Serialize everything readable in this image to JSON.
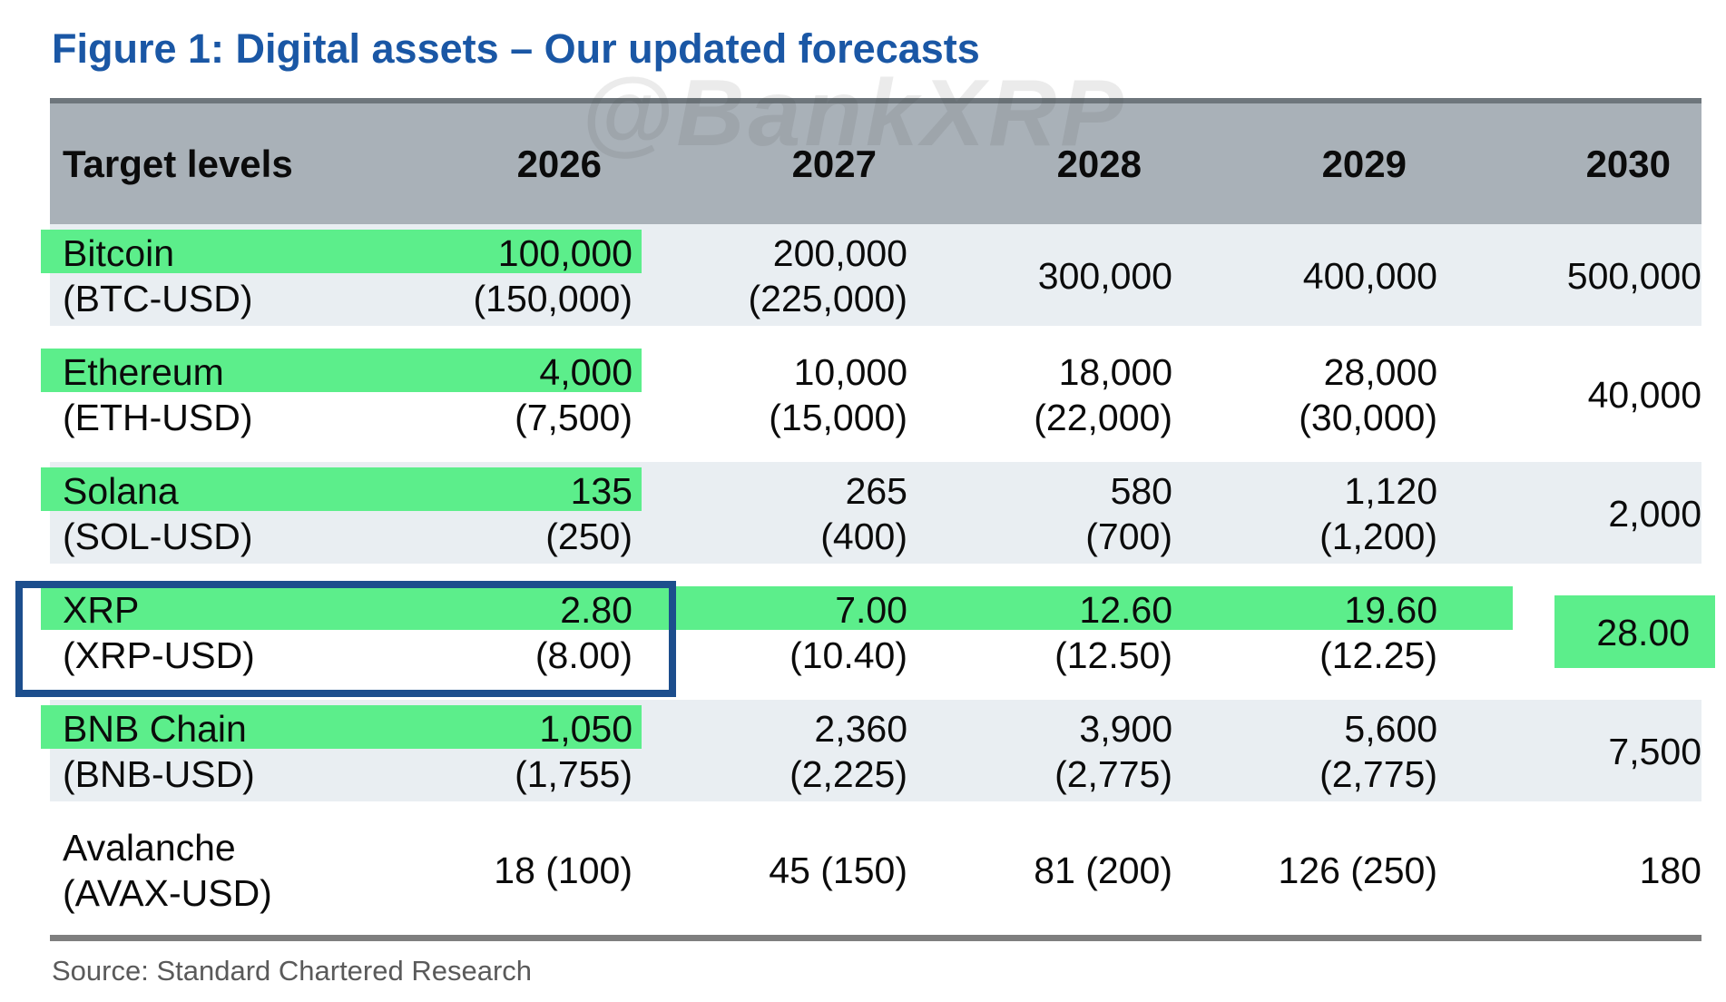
{
  "title": "Figure 1: Digital assets – Our updated forecasts",
  "watermark": "@BankXRP",
  "source": "Source: Standard Chartered Research",
  "colors": {
    "title_blue": "#1a57a5",
    "header_gray": "#a9b1b8",
    "row_band_blue": "#e9eef2",
    "highlight_green": "#5cee8b",
    "outline_blue": "#1c4e8d",
    "source_gray": "#5a5a5a"
  },
  "table": {
    "header": {
      "col0": "Target levels",
      "years": [
        "2026",
        "2027",
        "2028",
        "2029",
        "2030"
      ]
    },
    "rows": [
      {
        "name": "Bitcoin",
        "ticker": "(BTC-USD)",
        "cells": [
          {
            "line1": "100,000",
            "line2": "(150,000)"
          },
          {
            "line1": "200,000",
            "line2": "(225,000)"
          },
          {
            "single": "300,000"
          },
          {
            "single": "400,000"
          },
          {
            "single": "500,000"
          }
        ]
      },
      {
        "name": "Ethereum",
        "ticker": "(ETH-USD)",
        "cells": [
          {
            "line1": "4,000",
            "line2": "(7,500)"
          },
          {
            "line1": "10,000",
            "line2": "(15,000)"
          },
          {
            "line1": "18,000",
            "line2": "(22,000)"
          },
          {
            "line1": "28,000",
            "line2": "(30,000)"
          },
          {
            "single": "40,000"
          }
        ]
      },
      {
        "name": "Solana",
        "ticker": "(SOL-USD)",
        "cells": [
          {
            "line1": "135",
            "line2": "(250)"
          },
          {
            "line1": "265",
            "line2": "(400)"
          },
          {
            "line1": "580",
            "line2": "(700)"
          },
          {
            "line1": "1,120",
            "line2": "(1,200)"
          },
          {
            "single": "2,000"
          }
        ]
      },
      {
        "name": "XRP",
        "ticker": "(XRP-USD)",
        "cells": [
          {
            "line1": "2.80",
            "line2": "(8.00)"
          },
          {
            "line1": "7.00",
            "line2": "(10.40)"
          },
          {
            "line1": "12.60",
            "line2": "(12.50)"
          },
          {
            "line1": "19.60",
            "line2": "(12.25)"
          },
          {
            "single": "28.00"
          }
        ]
      },
      {
        "name": "BNB Chain",
        "ticker": "(BNB-USD)",
        "cells": [
          {
            "line1": "1,050",
            "line2": "(1,755)"
          },
          {
            "line1": "2,360",
            "line2": "(2,225)"
          },
          {
            "line1": "3,900",
            "line2": "(2,775)"
          },
          {
            "line1": "5,600",
            "line2": "(2,775)"
          },
          {
            "single": "7,500"
          }
        ]
      },
      {
        "name": "Avalanche",
        "ticker": "(AVAX-USD)",
        "cells": [
          {
            "single": "18 (100)"
          },
          {
            "single": "45 (150)"
          },
          {
            "single": "81 (200)"
          },
          {
            "single": "126 (250)"
          },
          {
            "single": "180"
          }
        ]
      }
    ]
  },
  "chart_data": {
    "type": "table",
    "title": "Figure 1: Digital assets – Our updated forecasts",
    "columns": [
      "Target levels",
      "2026",
      "2027",
      "2028",
      "2029",
      "2030"
    ],
    "rows": [
      [
        "Bitcoin (BTC-USD)",
        "100,000 (150,000)",
        "200,000 (225,000)",
        "300,000",
        "400,000",
        "500,000"
      ],
      [
        "Ethereum (ETH-USD)",
        "4,000 (7,500)",
        "10,000 (15,000)",
        "18,000 (22,000)",
        "28,000 (30,000)",
        "40,000"
      ],
      [
        "Solana (SOL-USD)",
        "135 (250)",
        "265 (400)",
        "580 (700)",
        "1,120 (1,200)",
        "2,000"
      ],
      [
        "XRP (XRP-USD)",
        "2.80 (8.00)",
        "7.00 (10.40)",
        "12.60 (12.50)",
        "19.60 (12.25)",
        "28.00"
      ],
      [
        "BNB Chain (BNB-USD)",
        "1,050 (1,755)",
        "2,360 (2,225)",
        "3,900 (2,775)",
        "5,600 (2,775)",
        "7,500"
      ],
      [
        "Avalanche (AVAX-USD)",
        "18 (100)",
        "45 (150)",
        "81 (200)",
        "126 (250)",
        "180"
      ]
    ],
    "highlights": {
      "green_label_2026_rows": [
        "Bitcoin",
        "Ethereum",
        "Solana",
        "BNB Chain"
      ],
      "green_full_first_line_row": "XRP (2026-2029 values 2.80, 7.00, 12.60, 19.60)",
      "green_box_cell": "XRP 2030 value 28.00",
      "blue_outline": "XRP label and 2026 column"
    },
    "source": "Source: Standard Chartered Research"
  }
}
